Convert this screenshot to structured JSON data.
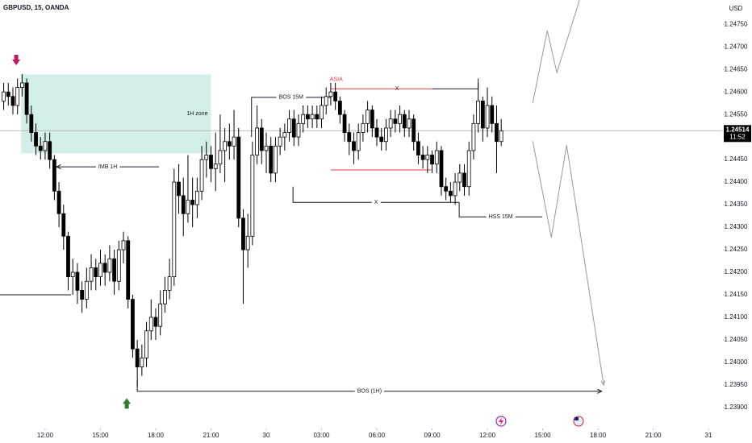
{
  "chart_data": {
    "type": "candlestick",
    "title": "GBPUSD, 15, OANDA",
    "currency": "USD",
    "up_color": "#ffffff",
    "down_color": "#000000",
    "outline_color": "#000000",
    "xlim": [
      9.55,
      48.74
    ],
    "ylim": [
      1.23857,
      1.24804
    ],
    "xticks": [
      {
        "value": 12,
        "label": "12:00"
      },
      {
        "value": 15,
        "label": "15:00"
      },
      {
        "value": 18,
        "label": "18:00"
      },
      {
        "value": 21,
        "label": "21:00"
      },
      {
        "value": 24,
        "label": "30"
      },
      {
        "value": 27,
        "label": "03:00"
      },
      {
        "value": 30,
        "label": "06:00"
      },
      {
        "value": 33,
        "label": "09:00"
      },
      {
        "value": 36,
        "label": "12:00"
      },
      {
        "value": 39,
        "label": "15:00"
      },
      {
        "value": 42,
        "label": "18:00"
      },
      {
        "value": 45,
        "label": "21:00"
      },
      {
        "value": 48,
        "label": "31"
      }
    ],
    "yticks": [
      {
        "value": 1.2475,
        "label": "1.24750"
      },
      {
        "value": 1.247,
        "label": "1.24700"
      },
      {
        "value": 1.2465,
        "label": "1.24650"
      },
      {
        "value": 1.246,
        "label": "1.24600"
      },
      {
        "value": 1.2455,
        "label": "1.24550"
      },
      {
        "value": 1.245,
        "label": "1.24500"
      },
      {
        "value": 1.2445,
        "label": "1.24450"
      },
      {
        "value": 1.244,
        "label": "1.24400"
      },
      {
        "value": 1.2435,
        "label": "1.24350"
      },
      {
        "value": 1.243,
        "label": "1.24300"
      },
      {
        "value": 1.2425,
        "label": "1.24250"
      },
      {
        "value": 1.242,
        "label": "1.24200"
      },
      {
        "value": 1.2415,
        "label": "1.24150"
      },
      {
        "value": 1.241,
        "label": "1.24100"
      },
      {
        "value": 1.2405,
        "label": "1.24050"
      },
      {
        "value": 1.24,
        "label": "1.24000"
      },
      {
        "value": 1.2395,
        "label": "1.23950"
      },
      {
        "value": 1.239,
        "label": "1.23900"
      }
    ],
    "last_price": 1.24514,
    "countdown": "11:52",
    "last_price_color": "#000000",
    "x": [
      9.75,
      10,
      10.25,
      10.5,
      10.75,
      11,
      11.25,
      11.5,
      11.75,
      12,
      12.25,
      12.5,
      12.75,
      13,
      13.25,
      13.5,
      13.75,
      14,
      14.25,
      14.5,
      14.75,
      15,
      15.25,
      15.5,
      15.75,
      16,
      16.25,
      16.5,
      16.75,
      17,
      17.25,
      17.5,
      17.75,
      18,
      18.25,
      18.5,
      18.75,
      19,
      19.25,
      19.5,
      19.75,
      20,
      20.25,
      20.5,
      20.75,
      21,
      21.25,
      21.5,
      21.75,
      22,
      22.25,
      22.5,
      22.75,
      23,
      23.25,
      23.5,
      23.75,
      24,
      24.25,
      24.5,
      24.75,
      25,
      25.25,
      25.5,
      25.75,
      26,
      26.25,
      26.5,
      26.75,
      27,
      27.25,
      27.5,
      27.75,
      28,
      28.25,
      28.5,
      28.75,
      29,
      29.25,
      29.5,
      29.75,
      30,
      30.25,
      30.5,
      30.75,
      31,
      31.25,
      31.5,
      31.75,
      32,
      32.25,
      32.5,
      32.75,
      33,
      33.25,
      33.5,
      33.75,
      34,
      34.25,
      34.5,
      34.75,
      35,
      35.25,
      35.5,
      35.75,
      36,
      36.25,
      36.5,
      36.75
    ],
    "open": [
      1.2458,
      1.246,
      1.2459,
      1.2457,
      1.2461,
      1.2462,
      1.2455,
      1.2451,
      1.2448,
      1.2447,
      1.2449,
      1.2445,
      1.2438,
      1.2433,
      1.2428,
      1.2419,
      1.242,
      1.2416,
      1.2414,
      1.2418,
      1.2421,
      1.2419,
      1.2422,
      1.242,
      1.2423,
      1.2418,
      1.2425,
      1.2427,
      1.2414,
      1.2403,
      1.2399,
      1.2401,
      1.2407,
      1.241,
      1.2408,
      1.2413,
      1.2416,
      1.2419,
      1.244,
      1.2437,
      1.2433,
      1.2436,
      1.2435,
      1.2438,
      1.2445,
      1.2446,
      1.2443,
      1.2444,
      1.2447,
      1.2449,
      1.2448,
      1.245,
      1.2432,
      1.2425,
      1.2428,
      1.2446,
      1.2452,
      1.2447,
      1.2448,
      1.2442,
      1.2448,
      1.245,
      1.2451,
      1.2454,
      1.245,
      1.2453,
      1.2455,
      1.2454,
      1.2455,
      1.2454,
      1.2457,
      1.2459,
      1.246,
      1.2458,
      1.2455,
      1.2451,
      1.2449,
      1.2447,
      1.2451,
      1.2453,
      1.2456,
      1.2452,
      1.245,
      1.2449,
      1.2452,
      1.2454,
      1.2453,
      1.2455,
      1.2452,
      1.2454,
      1.2449,
      1.2446,
      1.2445,
      1.2446,
      1.2444,
      1.2447,
      1.2439,
      1.2438,
      1.2437,
      1.244,
      1.2442,
      1.2439,
      1.2447,
      1.2453,
      1.2458,
      1.2452,
      1.2457,
      1.2453,
      1.2449
    ],
    "high": [
      1.2462,
      1.2462,
      1.2461,
      1.2463,
      1.2464,
      1.2463,
      1.2457,
      1.2453,
      1.245,
      1.2451,
      1.2451,
      1.2446,
      1.244,
      1.2435,
      1.2429,
      1.2423,
      1.2422,
      1.2418,
      1.2421,
      1.2424,
      1.2423,
      1.2425,
      1.2424,
      1.2426,
      1.2425,
      1.2427,
      1.2429,
      1.2428,
      1.2415,
      1.2405,
      1.2404,
      1.2409,
      1.2414,
      1.2412,
      1.2416,
      1.2419,
      1.2423,
      1.2443,
      1.2444,
      1.2441,
      1.2446,
      1.2441,
      1.2441,
      1.2448,
      1.2449,
      1.2448,
      1.2451,
      1.2455,
      1.2452,
      1.2453,
      1.2456,
      1.2452,
      1.2434,
      1.2433,
      1.2449,
      1.2457,
      1.2454,
      1.2451,
      1.245,
      1.245,
      1.2452,
      1.2453,
      1.2456,
      1.2456,
      1.2455,
      1.2457,
      1.2457,
      1.2457,
      1.2457,
      1.2459,
      1.2461,
      1.2462,
      1.2462,
      1.2459,
      1.2456,
      1.2453,
      1.2451,
      1.2453,
      1.2455,
      1.2458,
      1.2457,
      1.2454,
      1.2452,
      1.2454,
      1.2456,
      1.2456,
      1.2457,
      1.2456,
      1.2456,
      1.2455,
      1.2451,
      1.2448,
      1.2448,
      1.2447,
      1.2449,
      1.2448,
      1.2441,
      1.244,
      1.2442,
      1.2444,
      1.2444,
      1.2449,
      1.2455,
      1.2462,
      1.2459,
      1.2461,
      1.2459,
      1.2457,
      1.2454
    ],
    "low": [
      1.2456,
      1.2457,
      1.2455,
      1.2455,
      1.2459,
      1.2453,
      1.2449,
      1.2446,
      1.2445,
      1.2445,
      1.2443,
      1.2436,
      1.243,
      1.2425,
      1.2416,
      1.2415,
      1.2413,
      1.2411,
      1.2412,
      1.2416,
      1.2416,
      1.2417,
      1.2417,
      1.2418,
      1.2415,
      1.2416,
      1.2422,
      1.2412,
      1.2401,
      1.23946,
      1.2397,
      1.2399,
      1.2405,
      1.2405,
      1.2406,
      1.2411,
      1.2414,
      1.2417,
      1.2433,
      1.2428,
      1.2431,
      1.243,
      1.2432,
      1.2436,
      1.2441,
      1.244,
      1.2438,
      1.2442,
      1.244,
      1.2445,
      1.2445,
      1.243,
      1.2413,
      1.2421,
      1.2426,
      1.2444,
      1.2444,
      1.2442,
      1.244,
      1.244,
      1.2446,
      1.2447,
      1.2449,
      1.2448,
      1.2448,
      1.2451,
      1.2452,
      1.2452,
      1.2452,
      1.2452,
      1.2455,
      1.2457,
      1.2456,
      1.2453,
      1.2449,
      1.2446,
      1.2444,
      1.2445,
      1.2449,
      1.2451,
      1.245,
      1.2448,
      1.2447,
      1.2447,
      1.245,
      1.2451,
      1.2451,
      1.245,
      1.245,
      1.2447,
      1.2444,
      1.2443,
      1.2442,
      1.2442,
      1.2442,
      1.2437,
      1.2436,
      1.24355,
      1.2435,
      1.2438,
      1.2437,
      1.2437,
      1.2445,
      1.2451,
      1.2449,
      1.245,
      1.2451,
      1.2442,
      1.2448
    ],
    "close": [
      1.246,
      1.2459,
      1.2457,
      1.2461,
      1.2462,
      1.2455,
      1.2451,
      1.2448,
      1.2447,
      1.2449,
      1.2445,
      1.2438,
      1.2433,
      1.2428,
      1.2419,
      1.242,
      1.2416,
      1.2414,
      1.2418,
      1.2421,
      1.2419,
      1.2422,
      1.242,
      1.2423,
      1.2418,
      1.2425,
      1.2427,
      1.2414,
      1.2403,
      1.2399,
      1.2401,
      1.2407,
      1.241,
      1.2408,
      1.2413,
      1.2416,
      1.2419,
      1.244,
      1.2437,
      1.2433,
      1.2436,
      1.2435,
      1.2438,
      1.2445,
      1.2446,
      1.2443,
      1.2444,
      1.2447,
      1.2449,
      1.2448,
      1.245,
      1.2432,
      1.2425,
      1.2428,
      1.2446,
      1.2452,
      1.2447,
      1.2448,
      1.2442,
      1.2448,
      1.245,
      1.2451,
      1.2454,
      1.245,
      1.2453,
      1.2455,
      1.2454,
      1.2455,
      1.2454,
      1.2457,
      1.2459,
      1.246,
      1.2458,
      1.2455,
      1.2451,
      1.2449,
      1.2447,
      1.2451,
      1.2453,
      1.2456,
      1.2452,
      1.245,
      1.2449,
      1.2452,
      1.2454,
      1.2453,
      1.2455,
      1.2452,
      1.2454,
      1.2449,
      1.2446,
      1.2445,
      1.2446,
      1.2444,
      1.2447,
      1.2439,
      1.2438,
      1.2437,
      1.244,
      1.2442,
      1.2439,
      1.2447,
      1.2453,
      1.2458,
      1.2452,
      1.2457,
      1.2453,
      1.2449,
      1.24514
    ],
    "drawings": [
      {
        "kind": "zone",
        "x": [
          10.7,
          21.0
        ],
        "y": [
          1.24639,
          1.24464
        ],
        "color": "#d3eee9",
        "label": "1H zone"
      },
      {
        "kind": "line",
        "x": [
          12.62,
          18.18
        ],
        "y": [
          1.24434,
          1.24434
        ],
        "color": "#131722",
        "label": "IMB 1H",
        "arrow": "start"
      },
      {
        "kind": "line",
        "x": [
          23.2,
          23.2,
          27.5
        ],
        "y": [
          1.245,
          1.24588,
          1.24588
        ],
        "color": "#131722",
        "label": "BOS 15M"
      },
      {
        "kind": "line",
        "x": [
          27.5,
          33.0
        ],
        "y": [
          1.24607,
          1.24607
        ],
        "color": "#f23645"
      },
      {
        "kind": "text",
        "x": [
          27.8
        ],
        "y": [
          1.24628
        ],
        "color": "#f23645",
        "label": "ASIA"
      },
      {
        "kind": "line",
        "x": [
          33.0,
          35.5,
          35.5
        ],
        "y": [
          1.24607,
          1.24607,
          1.2463
        ],
        "color": "#131722"
      },
      {
        "kind": "text",
        "x": [
          31.1
        ],
        "y": [
          1.24607
        ],
        "color": "#131722",
        "label": "X"
      },
      {
        "kind": "line",
        "x": [
          27.5,
          33.0
        ],
        "y": [
          1.24427,
          1.24427
        ],
        "color": "#f23645"
      },
      {
        "kind": "line",
        "x": [
          25.45,
          25.45,
          34.47
        ],
        "y": [
          1.2439,
          1.24355,
          1.24355
        ],
        "color": "#131722",
        "label": "X"
      },
      {
        "kind": "line",
        "x": [
          34.47,
          34.47,
          38.98
        ],
        "y": [
          1.24355,
          1.24323,
          1.24323
        ],
        "color": "#131722",
        "label": "HSS 15M"
      },
      {
        "kind": "line",
        "x": [
          17.0,
          17.0,
          42.2
        ],
        "y": [
          1.2396,
          1.23936,
          1.23936
        ],
        "color": "#131722",
        "label": "BOS (1H)",
        "arrow": "end"
      },
      {
        "kind": "line",
        "x": [
          9.55,
          13.4
        ],
        "y": [
          1.2415,
          1.2415
        ],
        "color": "#131722"
      },
      {
        "kind": "line",
        "x": [
          38.46,
          39.25,
          39.77,
          41.0
        ],
        "y": [
          1.24575,
          1.24736,
          1.24643,
          1.24804
        ],
        "color": "#9598a1"
      },
      {
        "kind": "line",
        "x": [
          38.46,
          39.47,
          40.3,
          42.31
        ],
        "y": [
          1.24491,
          1.24277,
          1.24482,
          1.2395
        ],
        "color": "#9598a1",
        "arrow": "end"
      },
      {
        "kind": "marker",
        "x": [
          10.43
        ],
        "y": [
          1.2467
        ],
        "color": "#c2185b",
        "direction": "down"
      },
      {
        "kind": "marker",
        "x": [
          16.43
        ],
        "y": [
          1.2391
        ],
        "color": "#2e7d32",
        "direction": "up"
      }
    ]
  }
}
